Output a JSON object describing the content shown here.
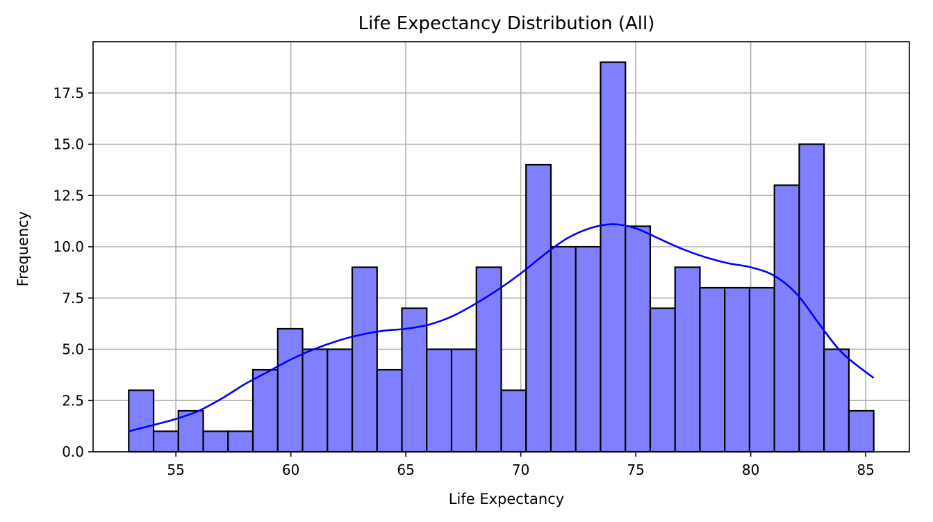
{
  "chart_data": {
    "type": "histogram",
    "title": "Life Expectancy Distribution (All)",
    "xlabel": "Life Expectancy",
    "ylabel": "Frequency",
    "xlim": [
      51.4,
      86.9
    ],
    "ylim": [
      0,
      20
    ],
    "x_ticks": [
      55,
      60,
      65,
      70,
      75,
      80,
      85
    ],
    "y_ticks": [
      0.0,
      2.5,
      5.0,
      7.5,
      10.0,
      12.5,
      15.0,
      17.5
    ],
    "grid": true,
    "bar_color": "#8080ff",
    "edge_color": "#000000",
    "kde_color": "#0000ff",
    "bins": [
      {
        "x0": 52.95,
        "x1": 54.03,
        "count": 3
      },
      {
        "x0": 54.03,
        "x1": 55.11,
        "count": 1
      },
      {
        "x0": 55.11,
        "x1": 56.19,
        "count": 2
      },
      {
        "x0": 56.19,
        "x1": 57.27,
        "count": 1
      },
      {
        "x0": 57.27,
        "x1": 58.35,
        "count": 1
      },
      {
        "x0": 58.35,
        "x1": 59.43,
        "count": 4
      },
      {
        "x0": 59.43,
        "x1": 60.51,
        "count": 6
      },
      {
        "x0": 60.51,
        "x1": 61.59,
        "count": 5
      },
      {
        "x0": 61.59,
        "x1": 62.67,
        "count": 5
      },
      {
        "x0": 62.67,
        "x1": 63.75,
        "count": 9
      },
      {
        "x0": 63.75,
        "x1": 64.83,
        "count": 4
      },
      {
        "x0": 64.83,
        "x1": 65.91,
        "count": 7
      },
      {
        "x0": 65.91,
        "x1": 66.99,
        "count": 5
      },
      {
        "x0": 66.99,
        "x1": 68.07,
        "count": 5
      },
      {
        "x0": 68.07,
        "x1": 69.15,
        "count": 9
      },
      {
        "x0": 69.15,
        "x1": 70.23,
        "count": 3
      },
      {
        "x0": 70.23,
        "x1": 71.31,
        "count": 14
      },
      {
        "x0": 71.31,
        "x1": 72.39,
        "count": 10
      },
      {
        "x0": 72.39,
        "x1": 73.47,
        "count": 10
      },
      {
        "x0": 73.47,
        "x1": 74.55,
        "count": 19
      },
      {
        "x0": 74.55,
        "x1": 75.63,
        "count": 11
      },
      {
        "x0": 75.63,
        "x1": 76.71,
        "count": 7
      },
      {
        "x0": 76.71,
        "x1": 77.79,
        "count": 9
      },
      {
        "x0": 77.79,
        "x1": 78.87,
        "count": 8
      },
      {
        "x0": 78.87,
        "x1": 79.95,
        "count": 8
      },
      {
        "x0": 79.95,
        "x1": 81.03,
        "count": 8
      },
      {
        "x0": 81.03,
        "x1": 82.11,
        "count": 13
      },
      {
        "x0": 82.11,
        "x1": 83.19,
        "count": 15
      },
      {
        "x0": 83.19,
        "x1": 84.27,
        "count": 5
      },
      {
        "x0": 84.27,
        "x1": 85.35,
        "count": 2
      }
    ],
    "kde": {
      "x": [
        52.95,
        54.0,
        55.0,
        56.0,
        57.0,
        58.0,
        59.0,
        60.0,
        61.0,
        62.0,
        63.0,
        64.0,
        65.0,
        66.0,
        67.0,
        68.0,
        69.0,
        70.0,
        71.0,
        72.0,
        73.0,
        74.0,
        75.0,
        76.0,
        77.0,
        78.0,
        79.0,
        80.0,
        81.0,
        82.0,
        83.0,
        84.0,
        85.35
      ],
      "y": [
        1.0,
        1.3,
        1.6,
        2.0,
        2.6,
        3.3,
        3.9,
        4.5,
        5.0,
        5.4,
        5.7,
        5.9,
        6.0,
        6.2,
        6.6,
        7.2,
        7.9,
        8.7,
        9.6,
        10.4,
        10.9,
        11.1,
        10.9,
        10.4,
        9.9,
        9.5,
        9.2,
        9.0,
        8.6,
        7.7,
        6.2,
        4.8,
        3.6
      ]
    }
  }
}
